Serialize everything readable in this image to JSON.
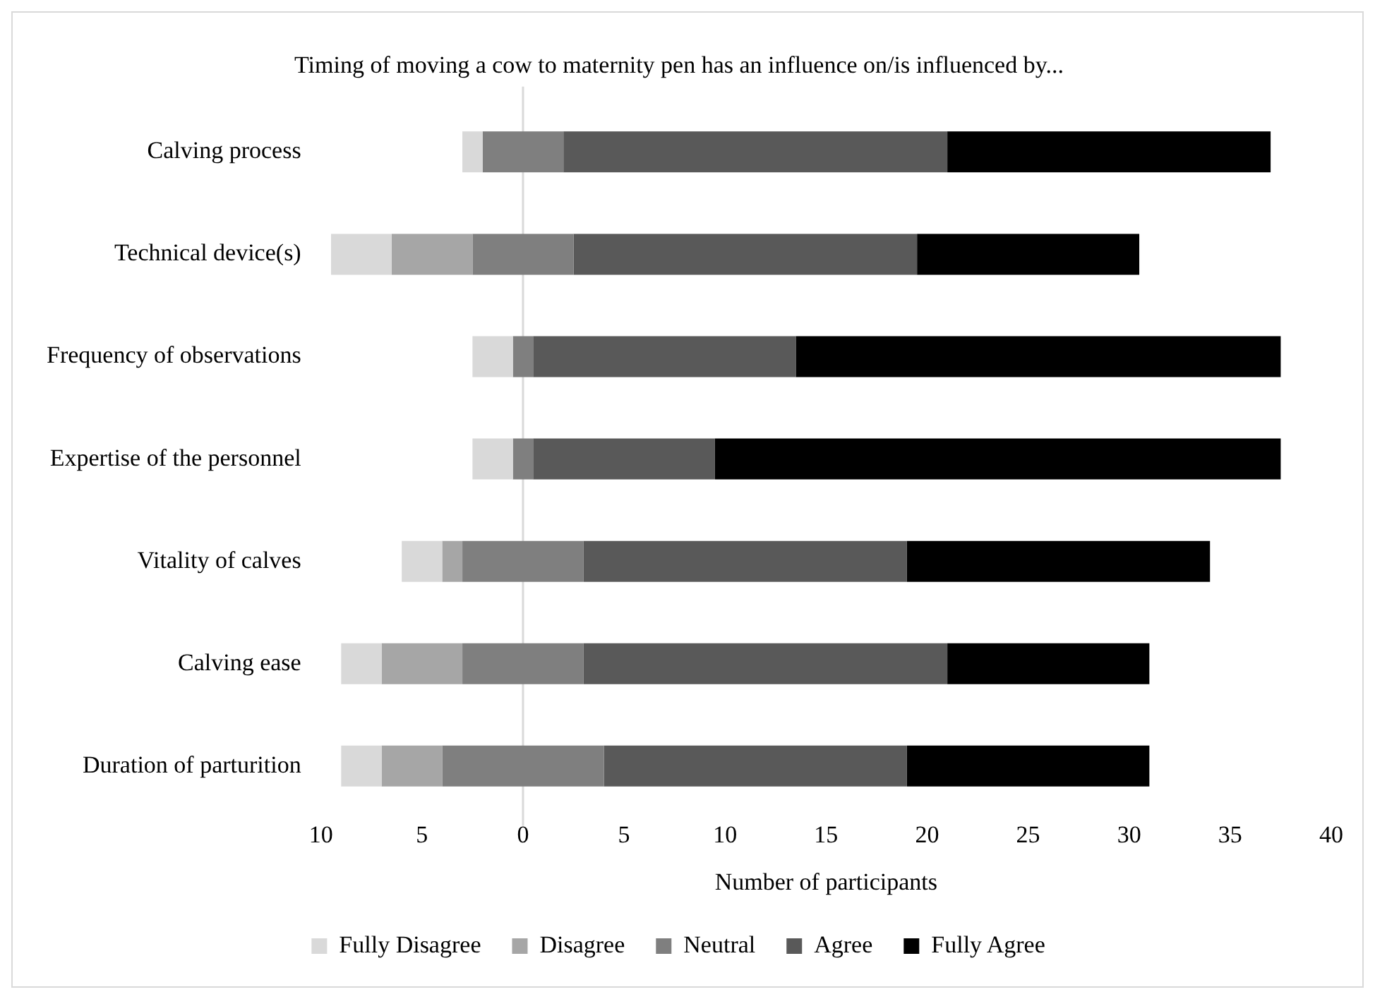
{
  "chart_data": {
    "type": "bar",
    "orientation": "horizontal",
    "title": "Timing of moving a cow to maternity pen has an influence on/is influenced by...",
    "xlabel": "Number of participants",
    "categories": [
      "Calving process",
      "Technical device(s)",
      "Frequency of observations",
      "Expertise of the personnel",
      "Vitality of calves",
      "Calving ease",
      "Duration of parturition"
    ],
    "series": [
      {
        "name": "Fully Disagree",
        "color": "#d9d9d9",
        "values": [
          1,
          3,
          2,
          2,
          2,
          2,
          2
        ],
        "base": [
          -3,
          -9.5,
          -2.5,
          -2.5,
          -6,
          -9,
          -9
        ]
      },
      {
        "name": "Disagree",
        "color": "#a6a6a6",
        "values": [
          null,
          4,
          null,
          null,
          1,
          4,
          3
        ],
        "base": [
          null,
          -6.5,
          null,
          null,
          -4,
          -7,
          -7
        ]
      },
      {
        "name": "Neutral",
        "color": "#7f7f7f",
        "values": [
          4,
          5,
          1,
          1,
          6,
          6,
          8
        ],
        "base": [
          -2,
          -2.5,
          -0.5,
          -0.5,
          -3,
          -3,
          -4
        ]
      },
      {
        "name": "Agree",
        "color": "#595959",
        "values": [
          19,
          17,
          13,
          9,
          16,
          18,
          15
        ],
        "base": [
          2,
          2.5,
          0.5,
          0.5,
          3,
          3,
          4
        ]
      },
      {
        "name": "Fully Agree",
        "color": "#000000",
        "values": [
          16,
          11,
          24,
          28,
          15,
          10,
          12
        ],
        "base": [
          21,
          19.5,
          13.5,
          9.5,
          19,
          21,
          19
        ]
      }
    ],
    "xlim": [
      -10,
      40
    ],
    "xticks": [
      {
        "value": -10,
        "label": "10"
      },
      {
        "value": -5,
        "label": "5"
      },
      0,
      5,
      10,
      15,
      20,
      25,
      30,
      35,
      40
    ],
    "ref_lines": [
      {
        "axis": "x",
        "value": 0,
        "color": "#d9d9d9"
      }
    ],
    "grid": false,
    "legend": "bottom"
  }
}
